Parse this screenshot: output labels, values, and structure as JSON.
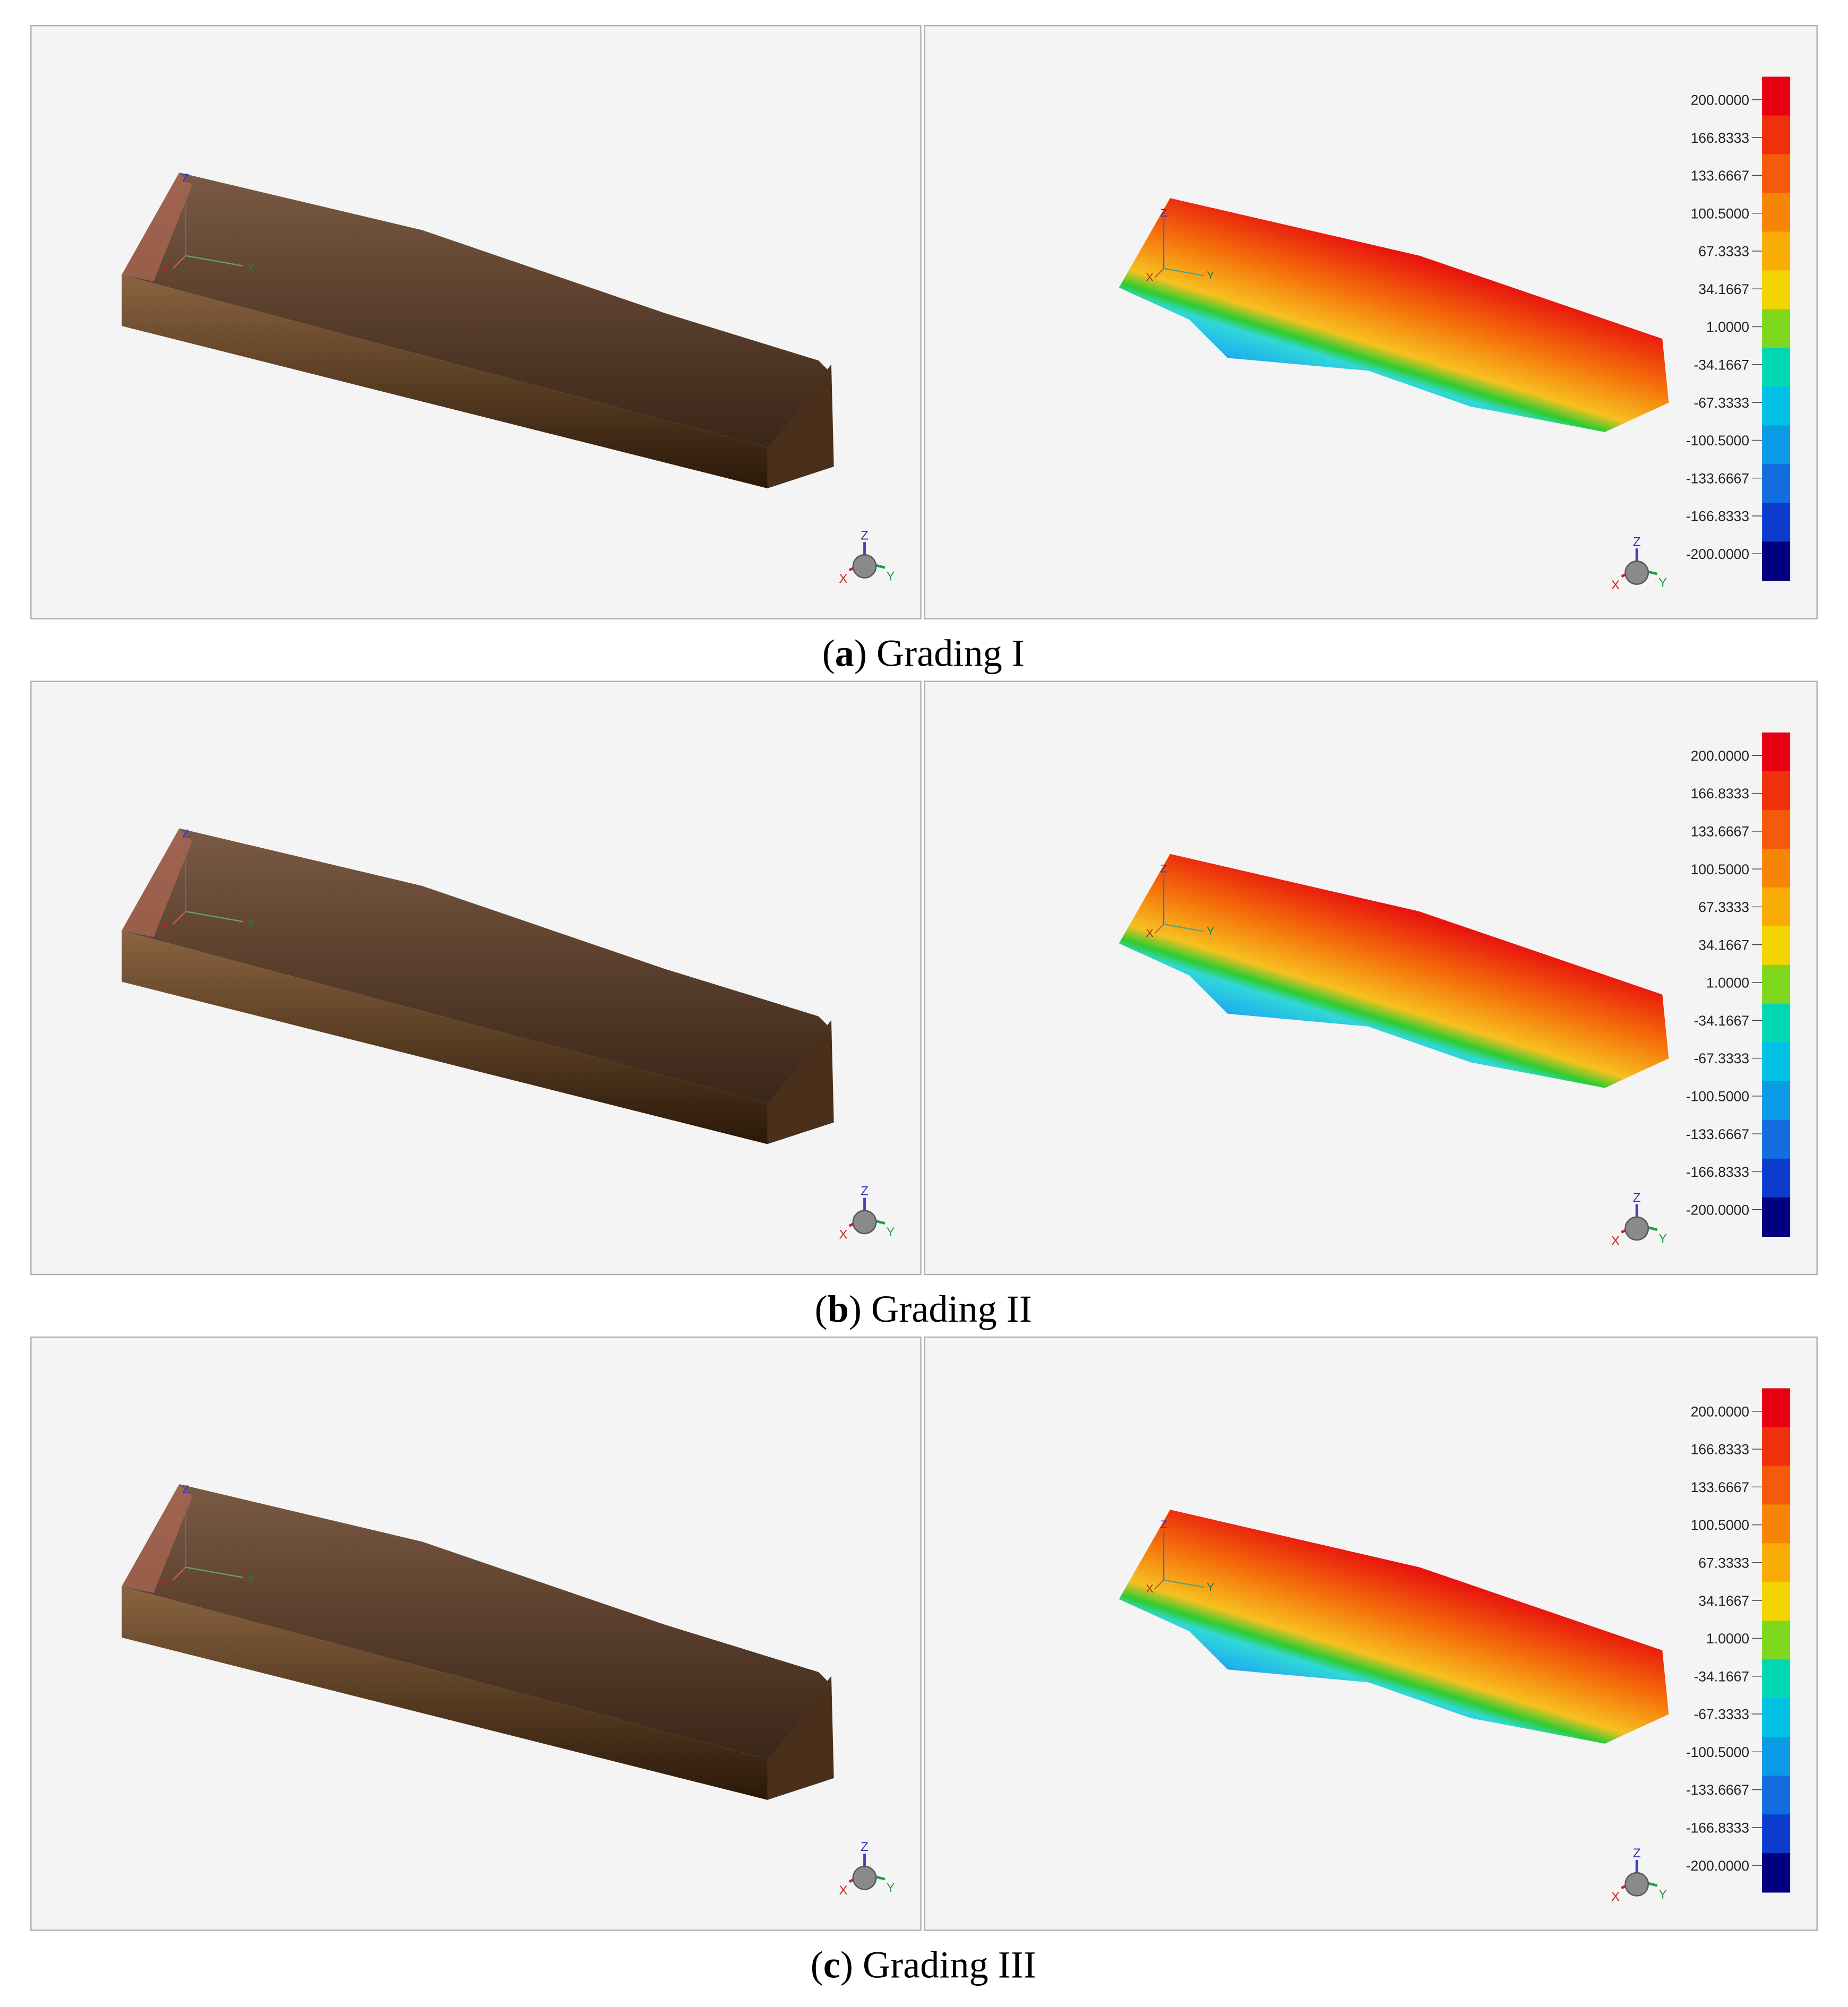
{
  "panels": [
    {
      "caption": [
        "(",
        "a",
        ") Grading I"
      ]
    },
    {
      "caption": [
        "(",
        "b",
        ") Grading II"
      ]
    },
    {
      "caption": [
        "(",
        "c",
        ") Grading III"
      ]
    }
  ],
  "colorbar_labels": [
    "200.0000",
    "166.8333",
    "133.6667",
    "100.5000",
    "67.3333",
    "34.1667",
    "1.0000",
    "-34.1667",
    "-67.3333",
    "-100.5000",
    "-133.6667",
    "-166.8333",
    "-200.0000"
  ],
  "colorbar_colors": [
    "#e60012",
    "#f0300c",
    "#f45a08",
    "#f78406",
    "#f9ad04",
    "#f2d400",
    "#7fd81c",
    "#00d8b4",
    "#00c0e6",
    "#0a9ae6",
    "#126ee0",
    "#0d3ccc",
    "#000080"
  ],
  "axis_labels": [
    "X",
    "Y",
    "Z"
  ]
}
